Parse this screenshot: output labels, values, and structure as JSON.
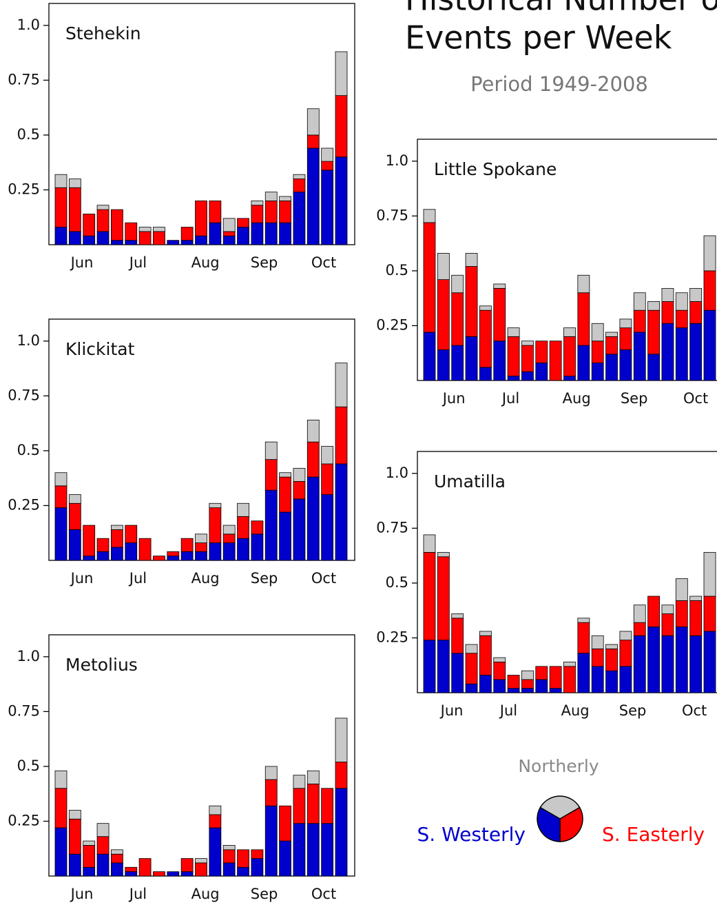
{
  "title_lines": [
    "Historical Number of",
    "Events per Week"
  ],
  "subtitle": "Period 1949-2008",
  "chart_data": [
    {
      "type": "bar",
      "stacked": true,
      "title": "Stehekin",
      "categories": [
        null,
        null,
        null,
        null,
        null,
        null,
        null,
        null,
        null,
        null,
        null,
        null,
        null,
        null,
        null,
        null,
        null,
        null,
        null,
        null,
        null
      ],
      "xlim": [
        -0.5,
        20.5
      ],
      "xticks": [
        {
          "value": 1.5,
          "label": "Jun"
        },
        {
          "value": 5.5,
          "label": "Jul"
        },
        {
          "value": 10.3,
          "label": "Aug"
        },
        {
          "value": 14.5,
          "label": "Sep"
        },
        {
          "value": 18.75,
          "label": "Oct"
        }
      ],
      "ylim": [
        0,
        1.1
      ],
      "yticks": [
        0.25,
        0.5,
        0.75,
        {
          "value": 1,
          "label": "1.0"
        }
      ],
      "series": [
        {
          "name": "S. Westerly",
          "color": "#0000cc",
          "values": [
            0.08,
            0.06,
            0.04,
            0.06,
            0.02,
            0.02,
            0,
            0,
            0.02,
            0.02,
            0.04,
            0.1,
            0.04,
            0.08,
            0.1,
            0.1,
            0.1,
            0.24,
            0.44,
            0.34,
            0.4
          ]
        },
        {
          "name": "S. Easterly",
          "color": "#ff0000",
          "values": [
            0.18,
            0.2,
            0.1,
            0.1,
            0.14,
            0.08,
            0.06,
            0.06,
            0,
            0.06,
            0.16,
            0.1,
            0.02,
            0.04,
            0.08,
            0.1,
            0.1,
            0.06,
            0.06,
            0.04,
            0.28
          ]
        },
        {
          "name": "Northerly",
          "color": "#c8c8c8",
          "values": [
            0.06,
            0.04,
            0,
            0.02,
            0,
            0,
            0.02,
            0.02,
            0,
            0,
            0,
            0,
            0.06,
            0,
            0.02,
            0.04,
            0.02,
            0.02,
            0.12,
            0.06,
            0.2
          ]
        }
      ]
    },
    {
      "type": "bar",
      "stacked": true,
      "title": "Klickitat",
      "categories": [
        null,
        null,
        null,
        null,
        null,
        null,
        null,
        null,
        null,
        null,
        null,
        null,
        null,
        null,
        null,
        null,
        null,
        null,
        null,
        null,
        null
      ],
      "xlim": [
        -0.5,
        20.5
      ],
      "xticks": [
        {
          "value": 1.5,
          "label": "Jun"
        },
        {
          "value": 5.5,
          "label": "Jul"
        },
        {
          "value": 10.3,
          "label": "Aug"
        },
        {
          "value": 14.5,
          "label": "Sep"
        },
        {
          "value": 18.75,
          "label": "Oct"
        }
      ],
      "ylim": [
        0,
        1.1
      ],
      "yticks": [
        0.25,
        0.5,
        0.75,
        {
          "value": 1,
          "label": "1.0"
        }
      ],
      "series": [
        {
          "name": "S. Westerly",
          "color": "#0000cc",
          "values": [
            0.24,
            0.14,
            0.02,
            0.04,
            0.06,
            0.08,
            0,
            0,
            0.02,
            0.04,
            0.04,
            0.08,
            0.08,
            0.1,
            0.12,
            0.32,
            0.22,
            0.28,
            0.38,
            0.3,
            0.44
          ]
        },
        {
          "name": "S. Easterly",
          "color": "#ff0000",
          "values": [
            0.1,
            0.12,
            0.14,
            0.06,
            0.08,
            0.08,
            0.1,
            0.02,
            0.02,
            0.06,
            0.04,
            0.16,
            0.04,
            0.1,
            0.06,
            0.14,
            0.16,
            0.08,
            0.16,
            0.14,
            0.26
          ]
        },
        {
          "name": "Northerly",
          "color": "#c8c8c8",
          "values": [
            0.06,
            0.04,
            0,
            0,
            0.02,
            0,
            0,
            0,
            0,
            0,
            0.04,
            0.02,
            0.04,
            0.06,
            0,
            0.08,
            0.02,
            0.06,
            0.1,
            0.08,
            0.2
          ]
        }
      ]
    },
    {
      "type": "bar",
      "stacked": true,
      "title": "Metolius",
      "categories": [
        null,
        null,
        null,
        null,
        null,
        null,
        null,
        null,
        null,
        null,
        null,
        null,
        null,
        null,
        null,
        null,
        null,
        null,
        null,
        null,
        null
      ],
      "xlim": [
        -0.5,
        20.5
      ],
      "xticks": [
        {
          "value": 1.5,
          "label": "Jun"
        },
        {
          "value": 5.5,
          "label": "Jul"
        },
        {
          "value": 10.3,
          "label": "Aug"
        },
        {
          "value": 14.5,
          "label": "Sep"
        },
        {
          "value": 18.75,
          "label": "Oct"
        }
      ],
      "ylim": [
        0,
        1.1
      ],
      "yticks": [
        0.25,
        0.5,
        0.75,
        {
          "value": 1,
          "label": "1.0"
        }
      ],
      "series": [
        {
          "name": "S. Westerly",
          "color": "#0000cc",
          "values": [
            0.22,
            0.1,
            0.04,
            0.1,
            0.06,
            0.02,
            0,
            0,
            0.02,
            0.02,
            0,
            0.22,
            0.06,
            0.04,
            0.08,
            0.32,
            0.16,
            0.24,
            0.24,
            0.24,
            0.4
          ]
        },
        {
          "name": "S. Easterly",
          "color": "#ff0000",
          "values": [
            0.18,
            0.16,
            0.1,
            0.08,
            0.04,
            0.02,
            0.08,
            0.02,
            0,
            0.06,
            0.06,
            0.06,
            0.06,
            0.08,
            0.04,
            0.12,
            0.16,
            0.16,
            0.18,
            0.16,
            0.12
          ]
        },
        {
          "name": "Northerly",
          "color": "#c8c8c8",
          "values": [
            0.08,
            0.04,
            0.02,
            0.06,
            0.02,
            0,
            0,
            0,
            0,
            0,
            0.02,
            0.04,
            0.02,
            0,
            0,
            0.06,
            0,
            0.06,
            0.06,
            0,
            0.2
          ]
        }
      ]
    },
    {
      "type": "bar",
      "stacked": true,
      "title": "Little Spokane",
      "categories": [
        null,
        null,
        null,
        null,
        null,
        null,
        null,
        null,
        null,
        null,
        null,
        null,
        null,
        null,
        null,
        null,
        null,
        null,
        null,
        null,
        null
      ],
      "xlim": [
        -0.5,
        20.5
      ],
      "xticks": [
        {
          "value": 1.75,
          "label": "Jun"
        },
        {
          "value": 5.8,
          "label": "Jul"
        },
        {
          "value": 10.5,
          "label": "Aug"
        },
        {
          "value": 14.6,
          "label": "Sep"
        },
        {
          "value": 19,
          "label": "Oct"
        }
      ],
      "ylim": [
        0,
        1.1
      ],
      "yticks": [
        0.25,
        0.5,
        0.75,
        {
          "value": 1,
          "label": "1.0"
        }
      ],
      "series": [
        {
          "name": "S. Westerly",
          "color": "#0000cc",
          "values": [
            0.22,
            0.14,
            0.16,
            0.2,
            0.06,
            0.18,
            0.02,
            0.04,
            0.08,
            0,
            0.02,
            0.16,
            0.08,
            0.12,
            0.14,
            0.22,
            0.12,
            0.26,
            0.24,
            0.26,
            0.32
          ]
        },
        {
          "name": "S. Easterly",
          "color": "#ff0000",
          "values": [
            0.5,
            0.32,
            0.24,
            0.32,
            0.26,
            0.24,
            0.18,
            0.12,
            0.1,
            0.18,
            0.18,
            0.24,
            0.1,
            0.08,
            0.1,
            0.1,
            0.2,
            0.1,
            0.08,
            0.1,
            0.18
          ]
        },
        {
          "name": "Northerly",
          "color": "#c8c8c8",
          "values": [
            0.06,
            0.12,
            0.08,
            0.06,
            0.02,
            0.02,
            0.04,
            0.02,
            0,
            0,
            0.04,
            0.08,
            0.08,
            0.02,
            0.04,
            0.08,
            0.04,
            0.06,
            0.08,
            0.06,
            0.16
          ]
        }
      ]
    },
    {
      "type": "bar",
      "stacked": true,
      "title": "Umatilla",
      "categories": [
        null,
        null,
        null,
        null,
        null,
        null,
        null,
        null,
        null,
        null,
        null,
        null,
        null,
        null,
        null,
        null,
        null,
        null,
        null,
        null,
        null
      ],
      "xlim": [
        -0.5,
        20.5
      ],
      "xticks": [
        {
          "value": 1.6,
          "label": "Jun"
        },
        {
          "value": 5.65,
          "label": "Jul"
        },
        {
          "value": 10.4,
          "label": "Aug"
        },
        {
          "value": 14.5,
          "label": "Sep"
        },
        {
          "value": 18.9,
          "label": "Oct"
        }
      ],
      "ylim": [
        0,
        1.1
      ],
      "yticks": [
        0.25,
        0.5,
        0.75,
        {
          "value": 1,
          "label": "1.0"
        }
      ],
      "series": [
        {
          "name": "S. Westerly",
          "color": "#0000cc",
          "values": [
            0.24,
            0.24,
            0.18,
            0.04,
            0.08,
            0.06,
            0.02,
            0.02,
            0.06,
            0.02,
            0,
            0.18,
            0.12,
            0.1,
            0.12,
            0.26,
            0.3,
            0.26,
            0.3,
            0.26,
            0.28
          ]
        },
        {
          "name": "S. Easterly",
          "color": "#ff0000",
          "values": [
            0.4,
            0.38,
            0.16,
            0.14,
            0.18,
            0.08,
            0.06,
            0.04,
            0.06,
            0.1,
            0.12,
            0.14,
            0.08,
            0.1,
            0.12,
            0.06,
            0.14,
            0.1,
            0.12,
            0.16,
            0.16
          ]
        },
        {
          "name": "Northerly",
          "color": "#c8c8c8",
          "values": [
            0.08,
            0.02,
            0.02,
            0.04,
            0.02,
            0.02,
            0,
            0.04,
            0,
            0,
            0.02,
            0.02,
            0.06,
            0.02,
            0.04,
            0.08,
            0,
            0.04,
            0.1,
            0.02,
            0.2
          ]
        }
      ]
    }
  ]
}
